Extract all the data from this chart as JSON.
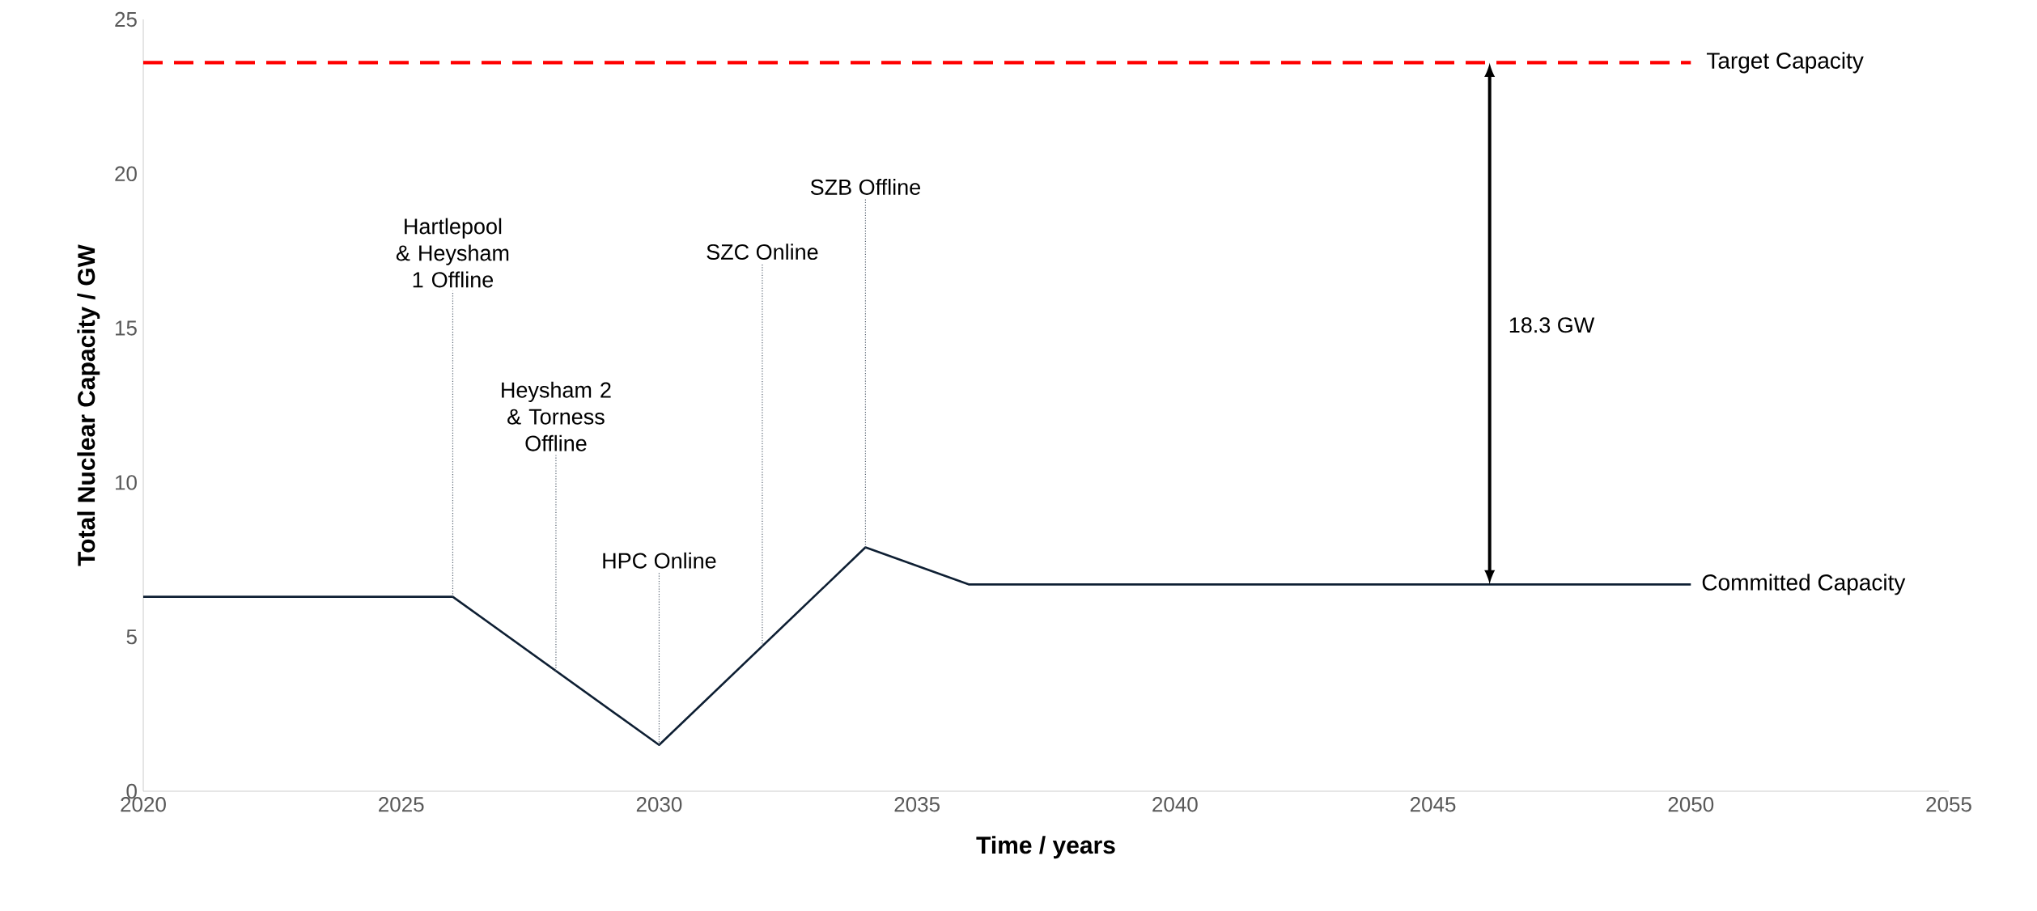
{
  "chart_data": {
    "type": "line",
    "xlabel": "Time / years",
    "ylabel": "Total Nuclear Capacity / GW",
    "x": [
      2020,
      2026,
      2030,
      2034,
      2036,
      2050
    ],
    "series": [
      {
        "name": "Committed Capacity",
        "color": "#0e1f33",
        "values": [
          6.3,
          6.3,
          1.5,
          7.9,
          6.7,
          6.7
        ]
      }
    ],
    "xlim": [
      2020,
      2055
    ],
    "ylim": [
      0,
      25
    ],
    "xticks": [
      2020,
      2025,
      2030,
      2035,
      2040,
      2045,
      2050,
      2055
    ],
    "yticks": [
      0,
      5,
      10,
      15,
      20,
      25
    ],
    "marker": "none",
    "ref_lines": [
      {
        "axis": "y",
        "value": 23.6,
        "label": "Target Capacity",
        "color": "#ff0000",
        "line_style": "dashed"
      }
    ],
    "annotations": [
      {
        "text": "Hartlepool & Heysham 1 Offline",
        "x": 2026,
        "y": 6.3
      },
      {
        "text": "Heysham 2 & Torness Offline",
        "x": 2028,
        "y": 3.9
      },
      {
        "text": "HPC Online",
        "x": 2030,
        "y": 1.5
      },
      {
        "text": "SZC Online",
        "x": 2032,
        "y": 4.7
      },
      {
        "text": "SZB Offline",
        "x": 2034,
        "y": 7.9
      },
      "18.3 GW"
    ]
  }
}
